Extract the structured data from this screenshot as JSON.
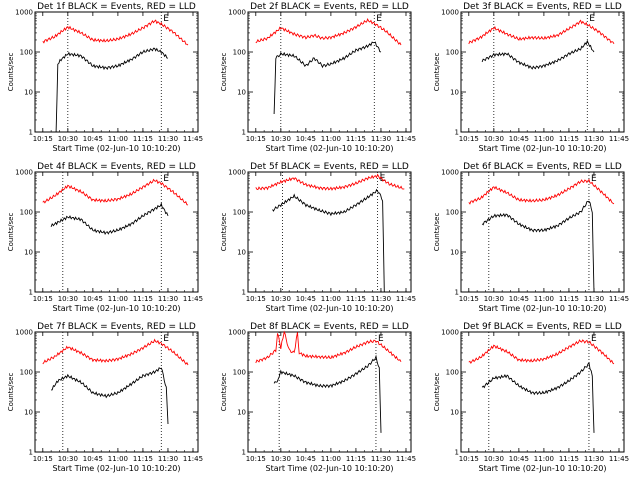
{
  "chart_data": [
    {
      "type": "line",
      "title": "Det 1f BLACK = Events, RED = LLD",
      "xlabel": "Start Time (02-Jun-10 10:10:20)",
      "ylabel": "Counts/sec",
      "xticks": [
        "10:15",
        "10:30",
        "10:45",
        "11:00",
        "11:15",
        "11:30",
        "11:45"
      ],
      "yticks": [
        "1",
        "10",
        "100",
        "1000"
      ],
      "ylim": [
        1,
        1000
      ],
      "yscale": "log",
      "markers": [
        {
          "label": "",
          "t": "10:30"
        },
        {
          "label": "E",
          "t": "11:26"
        }
      ],
      "series": [
        {
          "color": "#ff0000",
          "t": [
            "10:15",
            "10:22",
            "10:30",
            "10:38",
            "10:45",
            "10:53",
            "11:00",
            "11:08",
            "11:15",
            "11:22",
            "11:26",
            "11:33",
            "11:42"
          ],
          "values": [
            180,
            240,
            420,
            300,
            200,
            190,
            210,
            280,
            400,
            600,
            500,
            320,
            150
          ]
        },
        {
          "color": "#000000",
          "t": [
            "10:23",
            "10:24",
            "10:26",
            "10:30",
            "10:38",
            "10:45",
            "10:53",
            "11:00",
            "11:08",
            "11:15",
            "11:22",
            "11:26",
            "11:30"
          ],
          "values": [
            1,
            50,
            65,
            90,
            80,
            45,
            40,
            45,
            65,
            100,
            120,
            100,
            70
          ]
        }
      ]
    },
    {
      "type": "line",
      "title": "Det 2f BLACK = Events, RED = LLD",
      "xlabel": "Start Time (02-Jun-10 10:10:20)",
      "ylabel": "Counts/sec",
      "xticks": [
        "10:15",
        "10:30",
        "10:45",
        "11:00",
        "11:15",
        "11:30",
        "11:45"
      ],
      "yticks": [
        "1",
        "10",
        "100",
        "1000"
      ],
      "ylim": [
        1,
        1000
      ],
      "yscale": "log",
      "markers": [
        {
          "label": "",
          "t": "10:30"
        },
        {
          "label": "E",
          "t": "11:26"
        }
      ],
      "series": [
        {
          "color": "#ff0000",
          "t": [
            "10:15",
            "10:22",
            "10:30",
            "10:38",
            "10:45",
            "10:50",
            "10:55",
            "11:00",
            "11:08",
            "11:15",
            "11:22",
            "11:26",
            "11:33",
            "11:42"
          ],
          "values": [
            180,
            220,
            400,
            280,
            230,
            260,
            220,
            230,
            300,
            420,
            620,
            520,
            330,
            150
          ]
        },
        {
          "color": "#000000",
          "t": [
            "10:26",
            "10:27",
            "10:30",
            "10:38",
            "10:45",
            "10:50",
            "10:55",
            "11:00",
            "11:08",
            "11:15",
            "11:22",
            "11:26",
            "11:30"
          ],
          "values": [
            3,
            70,
            90,
            80,
            45,
            70,
            45,
            50,
            70,
            110,
            140,
            180,
            100
          ]
        }
      ]
    },
    {
      "type": "line",
      "title": "Det 3f BLACK = Events, RED = LLD",
      "xlabel": "Start Time (02-Jun-10 10:10:20)",
      "ylabel": "Counts/sec",
      "xticks": [
        "10:15",
        "10:30",
        "10:45",
        "11:00",
        "11:15",
        "11:30",
        "11:45"
      ],
      "yticks": [
        "1",
        "10",
        "100",
        "1000"
      ],
      "ylim": [
        1,
        1000
      ],
      "yscale": "log",
      "markers": [
        {
          "label": "",
          "t": "10:30"
        },
        {
          "label": "E",
          "t": "11:26"
        }
      ],
      "series": [
        {
          "color": "#ff0000",
          "t": [
            "10:15",
            "10:22",
            "10:30",
            "10:38",
            "10:45",
            "10:53",
            "11:00",
            "11:08",
            "11:15",
            "11:22",
            "11:26",
            "11:33",
            "11:42"
          ],
          "values": [
            170,
            230,
            400,
            280,
            210,
            230,
            220,
            260,
            380,
            580,
            480,
            320,
            160
          ]
        },
        {
          "color": "#000000",
          "t": [
            "10:23",
            "10:30",
            "10:38",
            "10:45",
            "10:53",
            "11:00",
            "11:08",
            "11:15",
            "11:22",
            "11:26",
            "11:30"
          ],
          "values": [
            60,
            85,
            90,
            55,
            40,
            45,
            60,
            90,
            120,
            180,
            100
          ]
        }
      ]
    },
    {
      "type": "line",
      "title": "Det 4f BLACK = Events, RED = LLD",
      "xlabel": "Start Time (02-Jun-10 10:10:20)",
      "ylabel": "Counts/sec",
      "xticks": [
        "10:15",
        "10:30",
        "10:45",
        "11:00",
        "11:15",
        "11:30",
        "11:45"
      ],
      "yticks": [
        "1",
        "10",
        "100",
        "1000"
      ],
      "ylim": [
        1,
        1000
      ],
      "yscale": "log",
      "markers": [
        {
          "label": "",
          "t": "10:27"
        },
        {
          "label": "E",
          "t": "11:26"
        }
      ],
      "series": [
        {
          "color": "#ff0000",
          "t": [
            "10:15",
            "10:22",
            "10:30",
            "10:38",
            "10:45",
            "10:53",
            "11:00",
            "11:08",
            "11:15",
            "11:22",
            "11:26",
            "11:33",
            "11:42"
          ],
          "values": [
            170,
            250,
            450,
            320,
            200,
            190,
            210,
            280,
            420,
            620,
            520,
            320,
            150
          ]
        },
        {
          "color": "#000000",
          "t": [
            "10:20",
            "10:24",
            "10:30",
            "10:38",
            "10:45",
            "10:53",
            "11:00",
            "11:08",
            "11:15",
            "11:22",
            "11:26",
            "11:30"
          ],
          "values": [
            45,
            55,
            75,
            65,
            35,
            30,
            35,
            50,
            80,
            120,
            150,
            80
          ]
        }
      ]
    },
    {
      "type": "line",
      "title": "Det 5f BLACK = Events, RED = LLD",
      "xlabel": "Start Time (02-Jun-10 10:10:20)",
      "ylabel": "Counts/sec",
      "xticks": [
        "10:15",
        "10:30",
        "10:45",
        "11:00",
        "11:15",
        "11:30",
        "11:45"
      ],
      "yticks": [
        "1",
        "10",
        "100",
        "1000"
      ],
      "ylim": [
        1,
        1000
      ],
      "yscale": "log",
      "markers": [
        {
          "label": "",
          "t": "10:31"
        },
        {
          "label": "E",
          "t": "11:28"
        }
      ],
      "series": [
        {
          "color": "#ff0000",
          "t": [
            "10:15",
            "10:22",
            "10:30",
            "10:38",
            "10:45",
            "10:53",
            "11:00",
            "11:08",
            "11:15",
            "11:22",
            "11:28",
            "11:35",
            "11:44"
          ],
          "values": [
            380,
            400,
            560,
            700,
            480,
            400,
            380,
            420,
            520,
            700,
            800,
            500,
            380
          ]
        },
        {
          "color": "#000000",
          "t": [
            "10:25",
            "10:30",
            "10:38",
            "10:45",
            "10:53",
            "11:00",
            "11:08",
            "11:15",
            "11:22",
            "11:28",
            "11:31",
            "11:32"
          ],
          "values": [
            110,
            150,
            250,
            150,
            110,
            90,
            100,
            150,
            230,
            350,
            200,
            1
          ]
        }
      ]
    },
    {
      "type": "line",
      "title": "Det 6f BLACK = Events, RED = LLD",
      "xlabel": "Start Time (02-Jun-10 10:10:20)",
      "ylabel": "Counts/sec",
      "xticks": [
        "10:15",
        "10:30",
        "10:45",
        "11:00",
        "11:15",
        "11:30",
        "11:45"
      ],
      "yticks": [
        "1",
        "10",
        "100",
        "1000"
      ],
      "ylim": [
        1,
        1000
      ],
      "yscale": "log",
      "markers": [
        {
          "label": "",
          "t": "10:27"
        },
        {
          "label": "E",
          "t": "11:27"
        }
      ],
      "series": [
        {
          "color": "#ff0000",
          "t": [
            "10:15",
            "10:22",
            "10:30",
            "10:38",
            "10:45",
            "10:53",
            "11:00",
            "11:08",
            "11:15",
            "11:22",
            "11:27",
            "11:34",
            "11:42"
          ],
          "values": [
            170,
            220,
            420,
            300,
            200,
            190,
            200,
            260,
            380,
            580,
            600,
            330,
            160
          ]
        },
        {
          "color": "#000000",
          "t": [
            "10:23",
            "10:30",
            "10:38",
            "10:45",
            "10:53",
            "11:00",
            "11:08",
            "11:15",
            "11:22",
            "11:27",
            "11:29",
            "11:30"
          ],
          "values": [
            50,
            80,
            85,
            50,
            35,
            35,
            45,
            70,
            100,
            200,
            100,
            1
          ]
        }
      ]
    },
    {
      "type": "line",
      "title": "Det 7f BLACK = Events, RED = LLD",
      "xlabel": "Start Time (02-Jun-10 10:10:20)",
      "ylabel": "Counts/sec",
      "xticks": [
        "10:15",
        "10:30",
        "10:45",
        "11:00",
        "11:15",
        "11:30",
        "11:45"
      ],
      "yticks": [
        "1",
        "10",
        "100",
        "1000"
      ],
      "ylim": [
        1,
        1000
      ],
      "yscale": "log",
      "markers": [
        {
          "label": "",
          "t": "10:27"
        },
        {
          "label": "E",
          "t": "11:26"
        }
      ],
      "series": [
        {
          "color": "#ff0000",
          "t": [
            "10:15",
            "10:22",
            "10:30",
            "10:38",
            "10:45",
            "10:53",
            "11:00",
            "11:08",
            "11:15",
            "11:22",
            "11:26",
            "11:33",
            "11:42"
          ],
          "values": [
            170,
            240,
            420,
            300,
            200,
            190,
            210,
            280,
            400,
            600,
            520,
            320,
            150
          ]
        },
        {
          "color": "#000000",
          "t": [
            "10:20",
            "10:24",
            "10:30",
            "10:38",
            "10:45",
            "10:53",
            "11:00",
            "11:08",
            "11:15",
            "11:22",
            "11:26",
            "11:29",
            "11:30"
          ],
          "values": [
            35,
            60,
            80,
            55,
            30,
            25,
            30,
            50,
            80,
            100,
            130,
            40,
            5
          ]
        }
      ]
    },
    {
      "type": "line",
      "title": "Det 8f BLACK = Events, RED = LLD",
      "xlabel": "Start Time (02-Jun-10 10:10:20)",
      "ylabel": "Counts/sec",
      "xticks": [
        "10:15",
        "10:30",
        "10:45",
        "11:00",
        "11:15",
        "11:30",
        "11:45"
      ],
      "yticks": [
        "1",
        "10",
        "100",
        "1000"
      ],
      "ylim": [
        1,
        1000
      ],
      "yscale": "log",
      "markers": [
        {
          "label": "",
          "t": "10:29"
        },
        {
          "label": "E",
          "t": "11:27"
        }
      ],
      "series": [
        {
          "color": "#ff0000",
          "t": [
            "10:15",
            "10:22",
            "10:27",
            "10:28",
            "10:30",
            "10:32",
            "10:35",
            "10:38",
            "10:40",
            "10:41",
            "10:45",
            "10:53",
            "11:00",
            "11:08",
            "11:15",
            "11:22",
            "11:27",
            "11:34",
            "11:42"
          ],
          "values": [
            180,
            230,
            350,
            1000,
            400,
            1000,
            350,
            300,
            1000,
            300,
            250,
            240,
            230,
            300,
            420,
            560,
            600,
            350,
            180
          ]
        },
        {
          "color": "#000000",
          "t": [
            "10:26",
            "10:29",
            "10:30",
            "10:38",
            "10:45",
            "10:53",
            "11:00",
            "11:08",
            "11:15",
            "11:22",
            "11:27",
            "11:29",
            "11:30"
          ],
          "values": [
            50,
            70,
            100,
            80,
            55,
            45,
            45,
            60,
            90,
            140,
            230,
            120,
            3
          ]
        }
      ]
    },
    {
      "type": "line",
      "title": "Det 9f BLACK = Events, RED = LLD",
      "xlabel": "Start Time (02-Jun-10 10:10:20)",
      "ylabel": "Counts/sec",
      "xticks": [
        "10:15",
        "10:30",
        "10:45",
        "11:00",
        "11:15",
        "11:30",
        "11:45"
      ],
      "yticks": [
        "1",
        "10",
        "100",
        "1000"
      ],
      "ylim": [
        1,
        1000
      ],
      "yscale": "log",
      "markers": [
        {
          "label": "",
          "t": "10:27"
        },
        {
          "label": "E",
          "t": "11:27"
        }
      ],
      "series": [
        {
          "color": "#ff0000",
          "t": [
            "10:15",
            "10:22",
            "10:30",
            "10:38",
            "10:45",
            "10:53",
            "11:00",
            "11:08",
            "11:15",
            "11:22",
            "11:27",
            "11:34",
            "11:42"
          ],
          "values": [
            170,
            230,
            450,
            320,
            200,
            190,
            210,
            280,
            420,
            600,
            560,
            330,
            160
          ]
        },
        {
          "color": "#000000",
          "t": [
            "10:23",
            "10:30",
            "10:38",
            "10:45",
            "10:53",
            "11:00",
            "11:08",
            "11:15",
            "11:22",
            "11:27",
            "11:29",
            "11:30"
          ],
          "values": [
            40,
            70,
            80,
            45,
            30,
            30,
            40,
            60,
            100,
            160,
            80,
            3
          ]
        }
      ]
    }
  ]
}
